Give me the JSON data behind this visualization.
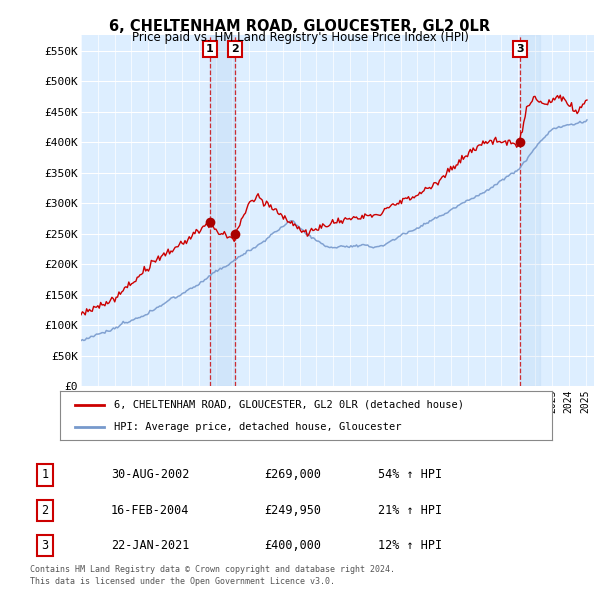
{
  "title": "6, CHELTENHAM ROAD, GLOUCESTER, GL2 0LR",
  "subtitle": "Price paid vs. HM Land Registry's House Price Index (HPI)",
  "ylabel_ticks": [
    "£0",
    "£50K",
    "£100K",
    "£150K",
    "£200K",
    "£250K",
    "£300K",
    "£350K",
    "£400K",
    "£450K",
    "£500K",
    "£550K"
  ],
  "ytick_values": [
    0,
    50000,
    100000,
    150000,
    200000,
    250000,
    300000,
    350000,
    400000,
    450000,
    500000,
    550000
  ],
  "ylim": [
    0,
    575000
  ],
  "legend_line1": "6, CHELTENHAM ROAD, GLOUCESTER, GL2 0LR (detached house)",
  "legend_line2": "HPI: Average price, detached house, Gloucester",
  "sale1_date": "30-AUG-2002",
  "sale1_price": "£269,000",
  "sale1_hpi": "54% ↑ HPI",
  "sale2_date": "16-FEB-2004",
  "sale2_price": "£249,950",
  "sale2_hpi": "21% ↑ HPI",
  "sale3_date": "22-JAN-2021",
  "sale3_price": "£400,000",
  "sale3_hpi": "12% ↑ HPI",
  "footer1": "Contains HM Land Registry data © Crown copyright and database right 2024.",
  "footer2": "This data is licensed under the Open Government Licence v3.0.",
  "red_color": "#cc0000",
  "blue_color": "#7799cc",
  "background_chart": "#ddeeff",
  "background_main": "#ffffff"
}
